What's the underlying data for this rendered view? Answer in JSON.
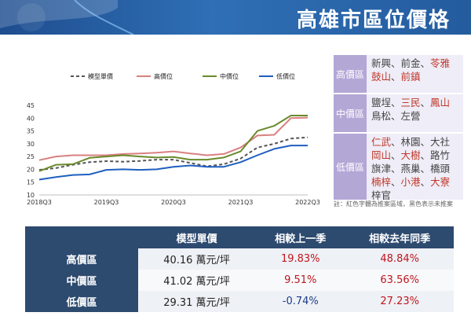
{
  "title": "高雄市區位價格",
  "chart_data": {
    "type": "line",
    "x": [
      "2018Q3",
      "2018Q4",
      "2019Q1",
      "2019Q2",
      "2019Q3",
      "2019Q4",
      "2020Q1",
      "2020Q2",
      "2020Q3",
      "2020Q4",
      "2021Q1",
      "2021Q2",
      "2021Q3",
      "2021Q4",
      "2022Q1",
      "2022Q2",
      "2022Q3"
    ],
    "xticks": [
      "2018Q3",
      "2019Q3",
      "2020Q3",
      "2021Q3",
      "2022Q3"
    ],
    "ylim": [
      10,
      45
    ],
    "yticks": [
      10,
      15,
      20,
      25,
      30,
      35,
      40,
      45
    ],
    "legend_position": "top",
    "series": [
      {
        "name": "模型單價",
        "color": "#555555",
        "dash": true,
        "values": [
          19.8,
          20.5,
          21.8,
          22.8,
          23.2,
          23.0,
          23.3,
          23.8,
          23.8,
          22.5,
          21.2,
          22.0,
          24.2,
          28.5,
          30.0,
          32.0,
          32.5
        ]
      },
      {
        "name": "高價位",
        "color": "#d98080",
        "dash": false,
        "values": [
          23.6,
          25.0,
          25.5,
          25.5,
          25.5,
          26.0,
          26.2,
          26.5,
          27.0,
          26.2,
          25.5,
          26.0,
          28.5,
          33.2,
          33.5,
          40.0,
          40.2
        ]
      },
      {
        "name": "中價位",
        "color": "#6a8a2c",
        "dash": false,
        "values": [
          19.3,
          21.8,
          22.0,
          24.5,
          25.0,
          25.5,
          25.0,
          24.6,
          24.8,
          23.8,
          23.8,
          24.6,
          27.0,
          35.0,
          37.0,
          41.0,
          41.0
        ]
      },
      {
        "name": "低價位",
        "color": "#1f5fbf",
        "dash": false,
        "values": [
          16.0,
          17.0,
          17.8,
          18.0,
          19.8,
          20.0,
          19.8,
          20.0,
          21.0,
          21.5,
          21.0,
          21.0,
          22.8,
          25.5,
          28.0,
          29.3,
          29.3
        ]
      }
    ]
  },
  "regions": [
    {
      "label": "高價區",
      "lines": [
        [
          {
            "t": "新興",
            "red": false
          },
          {
            "t": "、前金、",
            "red": false
          },
          {
            "t": "苓雅",
            "red": true
          }
        ],
        [
          {
            "t": "鼓山",
            "red": true
          },
          {
            "t": "、",
            "red": false
          },
          {
            "t": "前鎮",
            "red": true
          }
        ]
      ]
    },
    {
      "label": "中價區",
      "lines": [
        [
          {
            "t": "鹽埕、",
            "red": false
          },
          {
            "t": "三民",
            "red": true
          },
          {
            "t": "、",
            "red": false
          },
          {
            "t": "鳳山",
            "red": true
          }
        ],
        [
          {
            "t": "鳥松、左營",
            "red": false
          }
        ]
      ]
    },
    {
      "label": "低價區",
      "lines": [
        [
          {
            "t": "仁武",
            "red": true
          },
          {
            "t": "、林園、大社",
            "red": false
          }
        ],
        [
          {
            "t": "岡山",
            "red": true
          },
          {
            "t": "、",
            "red": false
          },
          {
            "t": "大樹",
            "red": true
          },
          {
            "t": "、路竹",
            "red": false
          }
        ],
        [
          {
            "t": "旗津、燕巢、橋頭",
            "red": false
          }
        ],
        [
          {
            "t": "楠梓",
            "red": true
          },
          {
            "t": "、",
            "red": false
          },
          {
            "t": "小港",
            "red": true
          },
          {
            "t": "、",
            "red": false
          },
          {
            "t": "大寮",
            "red": true
          }
        ],
        [
          {
            "t": "梓官",
            "red": false
          }
        ]
      ]
    }
  ],
  "note": "註：紅色字體為推案區域，黑色表示未推案",
  "table": {
    "headers": [
      "",
      "模型單價",
      "相較上一季",
      "相較去年同季"
    ],
    "rows": [
      {
        "label": "高價區",
        "price": "40.16 萬元/坪",
        "qoq": "19.83%",
        "yoy": "48.84%",
        "qoq_neg": false
      },
      {
        "label": "中價區",
        "price": "41.02 萬元/坪",
        "qoq": "9.51%",
        "yoy": "63.56%",
        "qoq_neg": false
      },
      {
        "label": "低價區",
        "price": "29.31 萬元/坪",
        "qoq": "-0.74%",
        "yoy": "27.23%",
        "qoq_neg": true
      }
    ]
  }
}
